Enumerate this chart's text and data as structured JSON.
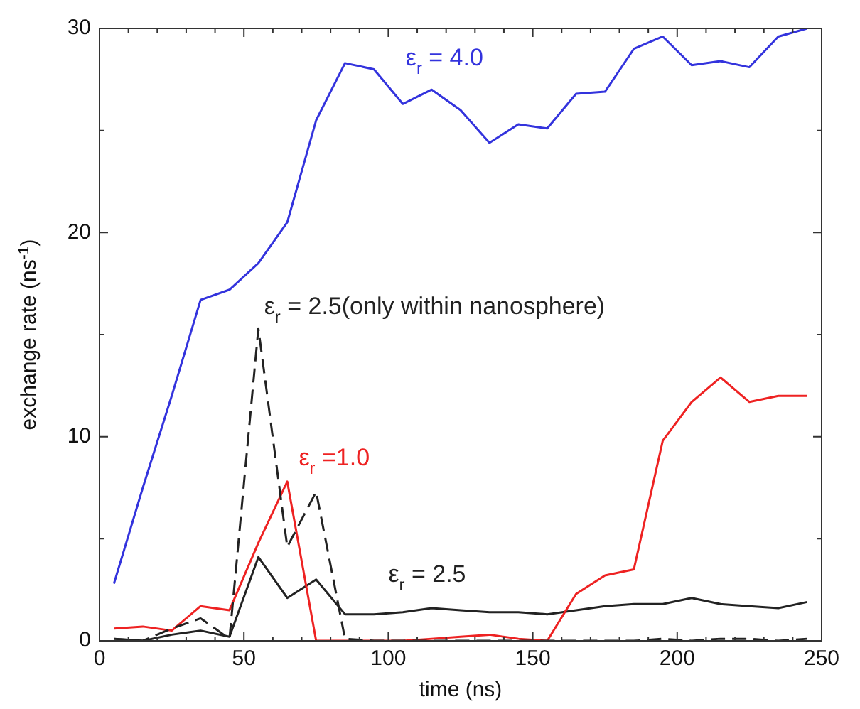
{
  "chart_data": {
    "type": "line",
    "xlabel": "time (ns)",
    "ylabel": "exchange rate (ns$^{-1}$)",
    "x": [
      5,
      15,
      25,
      35,
      45,
      55,
      65,
      75,
      85,
      95,
      105,
      115,
      125,
      135,
      145,
      155,
      165,
      175,
      185,
      195,
      205,
      215,
      225,
      235,
      245
    ],
    "xlim": [
      0,
      250
    ],
    "ylim": [
      0,
      30
    ],
    "xticks": [
      0,
      {
        "value": 10,
        "label": null
      },
      {
        "value": 20,
        "label": null
      },
      {
        "value": 30,
        "label": null
      },
      {
        "value": 40,
        "label": null
      },
      50,
      {
        "value": 60,
        "label": null
      },
      {
        "value": 70,
        "label": null
      },
      {
        "value": 80,
        "label": null
      },
      {
        "value": 90,
        "label": null
      },
      100,
      {
        "value": 110,
        "label": null
      },
      {
        "value": 120,
        "label": null
      },
      {
        "value": 130,
        "label": null
      },
      {
        "value": 140,
        "label": null
      },
      150,
      {
        "value": 160,
        "label": null
      },
      {
        "value": 170,
        "label": null
      },
      {
        "value": 180,
        "label": null
      },
      {
        "value": 190,
        "label": null
      },
      200,
      {
        "value": 210,
        "label": null
      },
      {
        "value": 220,
        "label": null
      },
      {
        "value": 230,
        "label": null
      },
      {
        "value": 240,
        "label": null
      },
      250
    ],
    "yticks": [
      0,
      {
        "value": 5,
        "label": null
      },
      10,
      {
        "value": 15,
        "label": null
      },
      20,
      {
        "value": 25,
        "label": null
      },
      30
    ],
    "grid": false,
    "legend": false,
    "marker": "none",
    "series": [
      {
        "name": "ε$_{r}$ = 4.0",
        "color": "#3333dd",
        "values": [
          2.8,
          7.5,
          12,
          16.7,
          17.2,
          18.5,
          20.5,
          25.5,
          28.3,
          28,
          26.3,
          27,
          26,
          24.4,
          25.3,
          25.1,
          26.8,
          26.9,
          29,
          29.6,
          28.2,
          28.4,
          28.1,
          29.6,
          30
        ]
      },
      {
        "name": "ε$_{r}$ = 2.5(only within nanosphere)",
        "color": "#222222",
        "line_style": "dashed",
        "values": [
          0.1,
          0,
          0.6,
          1.1,
          0.1,
          15.3,
          4.6,
          7.3,
          0.1,
          0,
          0,
          0,
          0,
          0,
          0,
          0,
          0,
          0,
          0,
          0.1,
          0,
          0.1,
          0.1,
          0,
          0.1
        ]
      },
      {
        "name": "ε$_{r}$ =1.0",
        "color": "#ee2222",
        "values": [
          0.6,
          0.7,
          0.5,
          1.7,
          1.5,
          4.8,
          7.8,
          0,
          0,
          0,
          0,
          0.1,
          0.2,
          0.3,
          0.1,
          0,
          2.3,
          3.2,
          3.5,
          9.8,
          11.7,
          12.9,
          11.7,
          12,
          12
        ]
      },
      {
        "name": "ε$_{r}$ = 2.5",
        "color": "#222222",
        "values": [
          0.1,
          0,
          0.3,
          0.5,
          0.2,
          4.1,
          2.1,
          3,
          1.3,
          1.3,
          1.4,
          1.6,
          1.5,
          1.4,
          1.4,
          1.3,
          1.5,
          1.7,
          1.8,
          1.8,
          2.1,
          1.8,
          1.7,
          1.6,
          1.9
        ]
      }
    ]
  }
}
